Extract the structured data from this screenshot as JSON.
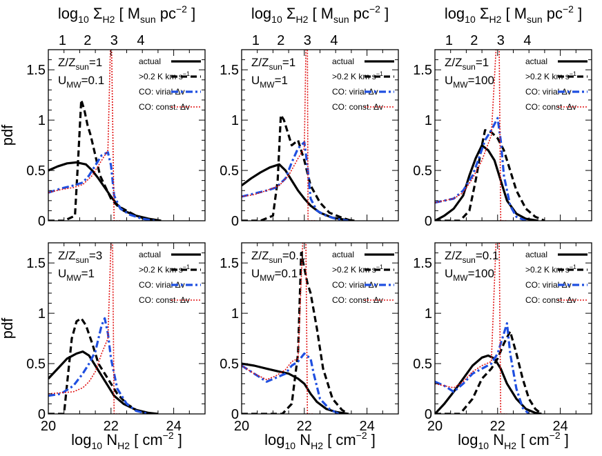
{
  "top_axis_label": {
    "pre": "log",
    "sub1": "10",
    "mid": " Σ",
    "sub2": "H2",
    "post": " [ M",
    "sub3": "sun",
    "post2": " pc",
    "sup": "−2",
    "end": " ]"
  },
  "bottom_axis_label": {
    "pre": "log",
    "sub1": "10",
    "mid": " N",
    "sub2": "H2",
    "post": " [ cm",
    "sup": "−2",
    "end": " ]"
  },
  "ylabel": "pdf",
  "legend": {
    "actual": "actual",
    "threshold": {
      "pre": ">0.2 K km s",
      "sup": "−1"
    },
    "virial": "CO: virial Δv",
    "const": "CO: const. Δv"
  },
  "colors": {
    "actual": "#000000",
    "threshold": "#000000",
    "virial": "#1f4fe0",
    "const": "#e01010"
  },
  "chart_data": [
    {
      "type": "line",
      "panel": 1,
      "annotation": {
        "z_label": "Z/Z",
        "z_sub": "sun",
        "z_val": "=1",
        "u_label": "U",
        "u_sub": "MW",
        "u_val": "=0.1"
      },
      "xlabel": "log10 N_H2 [cm^-2]",
      "ylabel": "pdf",
      "xlim": [
        20,
        25
      ],
      "ylim": [
        0,
        1.7
      ],
      "x_ticks": [
        "20",
        "22",
        "24"
      ],
      "y_ticks": [
        "0",
        "0.5",
        "1",
        "1.5"
      ],
      "top_ticks": [
        "1",
        "2",
        "3",
        "4"
      ],
      "series": [
        {
          "name": "actual",
          "x": [
            20.0,
            20.3,
            20.6,
            20.9,
            21.2,
            21.4,
            21.6,
            21.8,
            22.0,
            22.2,
            22.4,
            22.8,
            23.2,
            23.6
          ],
          "y": [
            0.5,
            0.54,
            0.57,
            0.58,
            0.56,
            0.5,
            0.42,
            0.33,
            0.24,
            0.16,
            0.1,
            0.05,
            0.02,
            0.0
          ]
        },
        {
          "name": ">0.2 K km s^-1",
          "x": [
            20.0,
            20.5,
            20.85,
            20.95,
            21.05,
            21.15,
            21.25,
            21.35,
            21.5,
            21.65,
            21.8,
            22.0,
            22.2,
            22.5,
            22.8,
            23.1,
            23.5
          ],
          "y": [
            0.0,
            0.0,
            0.05,
            0.6,
            1.2,
            1.1,
            0.95,
            0.85,
            0.65,
            0.45,
            0.35,
            0.22,
            0.15,
            0.1,
            0.05,
            0.02,
            0.0
          ]
        },
        {
          "name": "CO: virial Δv",
          "x": [
            20.0,
            20.4,
            20.8,
            21.1,
            21.3,
            21.5,
            21.7,
            21.9,
            22.0,
            22.1,
            22.3,
            22.6,
            23.0,
            23.4
          ],
          "y": [
            0.28,
            0.32,
            0.35,
            0.38,
            0.45,
            0.55,
            0.65,
            0.68,
            0.55,
            0.25,
            0.12,
            0.06,
            0.02,
            0.0
          ]
        },
        {
          "name": "CO: const. Δv",
          "x": [
            20.0,
            20.4,
            20.8,
            21.1,
            21.4,
            21.7,
            21.9,
            21.98,
            22.0,
            22.02,
            22.1,
            22.3
          ],
          "y": [
            0.28,
            0.31,
            0.33,
            0.36,
            0.45,
            0.6,
            0.7,
            1.7,
            1.7,
            1.7,
            0.0,
            0.0
          ]
        }
      ]
    },
    {
      "type": "line",
      "panel": 2,
      "annotation": {
        "z_label": "Z/Z",
        "z_sub": "sun",
        "z_val": "=1",
        "u_label": "U",
        "u_sub": "MW",
        "u_val": "=1"
      },
      "xlim": [
        20,
        25
      ],
      "ylim": [
        0,
        1.7
      ],
      "x_ticks": [
        "20",
        "22",
        "24"
      ],
      "y_ticks": [
        "0",
        "0.5",
        "1",
        "1.5"
      ],
      "top_ticks": [
        "1",
        "2",
        "3",
        "4"
      ],
      "series": [
        {
          "name": "actual",
          "x": [
            20.0,
            20.3,
            20.6,
            20.9,
            21.2,
            21.4,
            21.6,
            21.8,
            22.0,
            22.2,
            22.5,
            22.9,
            23.3,
            23.6
          ],
          "y": [
            0.35,
            0.42,
            0.48,
            0.53,
            0.56,
            0.5,
            0.4,
            0.3,
            0.22,
            0.15,
            0.08,
            0.03,
            0.01,
            0.0
          ]
        },
        {
          "name": ">0.2 K km s^-1",
          "x": [
            20.0,
            20.6,
            21.0,
            21.15,
            21.25,
            21.35,
            21.45,
            21.6,
            21.8,
            22.0,
            22.2,
            22.5,
            22.8,
            23.2,
            23.5
          ],
          "y": [
            0.0,
            0.0,
            0.05,
            0.4,
            1.05,
            1.0,
            0.9,
            0.75,
            0.8,
            0.6,
            0.35,
            0.18,
            0.08,
            0.03,
            0.0
          ]
        },
        {
          "name": "CO: virial Δv",
          "x": [
            20.0,
            20.4,
            20.8,
            21.1,
            21.4,
            21.6,
            21.8,
            22.0,
            22.1,
            22.2,
            22.4,
            22.7,
            23.0,
            23.4
          ],
          "y": [
            0.24,
            0.27,
            0.3,
            0.33,
            0.42,
            0.58,
            0.72,
            0.78,
            0.55,
            0.22,
            0.1,
            0.05,
            0.02,
            0.0
          ]
        },
        {
          "name": "CO: const. Δv",
          "x": [
            20.0,
            20.4,
            20.8,
            21.2,
            21.5,
            21.8,
            22.0,
            22.05,
            22.1,
            22.12,
            22.2,
            22.4
          ],
          "y": [
            0.24,
            0.26,
            0.3,
            0.35,
            0.45,
            0.62,
            0.72,
            1.7,
            1.7,
            0.0,
            0.0,
            0.0
          ]
        }
      ]
    },
    {
      "type": "line",
      "panel": 3,
      "annotation": {
        "z_label": "Z/Z",
        "z_sub": "sun",
        "z_val": "=1",
        "u_label": "U",
        "u_sub": "MW",
        "u_val": "=100"
      },
      "xlim": [
        20,
        25
      ],
      "ylim": [
        0,
        1.7
      ],
      "x_ticks": [
        "20",
        "22",
        "24"
      ],
      "y_ticks": [
        "0",
        "0.5",
        "1",
        "1.5"
      ],
      "top_ticks": [
        "1",
        "2",
        "3",
        "4"
      ],
      "series": [
        {
          "name": "actual",
          "x": [
            20.0,
            20.3,
            20.6,
            20.9,
            21.1,
            21.3,
            21.5,
            21.7,
            21.9,
            22.1,
            22.3,
            22.6,
            22.9,
            23.3
          ],
          "y": [
            0.0,
            0.05,
            0.12,
            0.25,
            0.45,
            0.62,
            0.75,
            0.7,
            0.6,
            0.4,
            0.2,
            0.07,
            0.02,
            0.0
          ]
        },
        {
          "name": ">0.2 K km s^-1",
          "x": [
            20.0,
            20.8,
            21.1,
            21.3,
            21.5,
            21.6,
            21.8,
            22.0,
            22.2,
            22.4,
            22.6,
            22.9,
            23.2,
            23.5
          ],
          "y": [
            0.0,
            0.0,
            0.1,
            0.4,
            0.75,
            0.9,
            0.88,
            0.82,
            0.7,
            0.5,
            0.3,
            0.12,
            0.04,
            0.0
          ]
        },
        {
          "name": "CO: virial Δv",
          "x": [
            20.0,
            20.3,
            20.6,
            20.9,
            21.2,
            21.4,
            21.6,
            21.8,
            22.0,
            22.1,
            22.2,
            22.4,
            22.6,
            22.9
          ],
          "y": [
            0.18,
            0.2,
            0.22,
            0.3,
            0.45,
            0.62,
            0.8,
            0.9,
            1.02,
            0.8,
            0.45,
            0.15,
            0.04,
            0.0
          ]
        },
        {
          "name": "CO: const. Δv",
          "x": [
            20.0,
            20.3,
            20.6,
            20.9,
            21.2,
            21.5,
            21.8,
            21.95,
            22.0,
            22.05,
            22.1,
            22.3
          ],
          "y": [
            0.18,
            0.2,
            0.22,
            0.28,
            0.42,
            0.6,
            0.85,
            1.7,
            1.7,
            1.7,
            0.0,
            0.0
          ]
        }
      ]
    },
    {
      "type": "line",
      "panel": 4,
      "annotation": {
        "z_label": "Z/Z",
        "z_sub": "sun",
        "z_val": "=3",
        "u_label": "U",
        "u_sub": "MW",
        "u_val": "=1"
      },
      "xlim": [
        20,
        25
      ],
      "ylim": [
        0,
        1.7
      ],
      "x_ticks": [
        "20",
        "22",
        "24"
      ],
      "y_ticks": [
        "0",
        "0.5",
        "1",
        "1.5"
      ],
      "top_ticks": [],
      "series": [
        {
          "name": "actual",
          "x": [
            20.0,
            20.3,
            20.6,
            20.9,
            21.1,
            21.3,
            21.5,
            21.7,
            21.9,
            22.1,
            22.4,
            22.8,
            23.2,
            23.5
          ],
          "y": [
            0.35,
            0.45,
            0.55,
            0.6,
            0.62,
            0.58,
            0.48,
            0.38,
            0.28,
            0.18,
            0.1,
            0.04,
            0.01,
            0.0
          ]
        },
        {
          "name": ">0.2 K km s^-1",
          "x": [
            20.0,
            20.5,
            20.6,
            20.75,
            20.9,
            21.05,
            21.2,
            21.4,
            21.6,
            21.8,
            22.0,
            22.2,
            22.5,
            22.8,
            23.1
          ],
          "y": [
            0.0,
            0.0,
            0.3,
            0.75,
            0.92,
            0.95,
            0.88,
            0.7,
            0.5,
            0.4,
            0.3,
            0.2,
            0.1,
            0.04,
            0.0
          ]
        },
        {
          "name": "CO: virial Δv",
          "x": [
            20.0,
            20.4,
            20.8,
            21.1,
            21.3,
            21.5,
            21.7,
            21.8,
            21.9,
            22.0,
            22.2,
            22.5,
            22.8,
            23.2
          ],
          "y": [
            0.18,
            0.2,
            0.28,
            0.4,
            0.5,
            0.62,
            0.88,
            0.95,
            0.8,
            0.55,
            0.25,
            0.1,
            0.03,
            0.0
          ]
        },
        {
          "name": "CO: const. Δv",
          "x": [
            20.0,
            20.4,
            20.8,
            21.1,
            21.3,
            21.5,
            21.7,
            21.9,
            22.0,
            22.05,
            22.1,
            22.3
          ],
          "y": [
            0.2,
            0.21,
            0.22,
            0.26,
            0.32,
            0.42,
            0.6,
            0.75,
            1.7,
            1.7,
            0.0,
            0.0
          ]
        }
      ]
    },
    {
      "type": "line",
      "panel": 5,
      "annotation": {
        "z_label": "Z/Z",
        "z_sub": "sun",
        "z_val": "=0.1",
        "u_label": "U",
        "u_sub": "MW",
        "u_val": "=0.1"
      },
      "xlim": [
        20,
        25
      ],
      "ylim": [
        0,
        1.7
      ],
      "x_ticks": [
        "20",
        "22",
        "24"
      ],
      "y_ticks": [
        "0",
        "0.5",
        "1",
        "1.5"
      ],
      "top_ticks": [],
      "series": [
        {
          "name": "actual",
          "x": [
            20.0,
            20.4,
            20.8,
            21.2,
            21.5,
            21.8,
            22.0,
            22.2,
            22.4,
            22.7,
            23.0,
            23.4
          ],
          "y": [
            0.5,
            0.48,
            0.45,
            0.42,
            0.4,
            0.35,
            0.3,
            0.2,
            0.12,
            0.05,
            0.02,
            0.0
          ]
        },
        {
          "name": ">0.2 K km s^-1",
          "x": [
            20.0,
            21.3,
            21.6,
            21.8,
            21.9,
            22.0,
            22.1,
            22.2,
            22.4,
            22.6,
            22.9,
            23.2,
            23.4
          ],
          "y": [
            0.0,
            0.0,
            0.1,
            0.6,
            1.6,
            1.45,
            1.3,
            1.2,
            0.85,
            0.45,
            0.15,
            0.04,
            0.0
          ]
        },
        {
          "name": "CO: virial Δv",
          "x": [
            20.0,
            20.4,
            20.8,
            21.1,
            21.4,
            21.6,
            21.8,
            22.0,
            22.2,
            22.3,
            22.5,
            22.8,
            23.1
          ],
          "y": [
            0.48,
            0.4,
            0.32,
            0.36,
            0.4,
            0.48,
            0.52,
            0.6,
            0.55,
            0.4,
            0.15,
            0.05,
            0.0
          ]
        },
        {
          "name": "CO: const. Δv",
          "x": [
            20.0,
            20.4,
            20.8,
            21.1,
            21.4,
            21.6,
            21.8,
            21.95,
            22.0,
            22.05,
            22.1,
            22.3
          ],
          "y": [
            0.48,
            0.4,
            0.34,
            0.38,
            0.44,
            0.52,
            0.55,
            1.7,
            1.7,
            1.7,
            0.0,
            0.0
          ]
        }
      ]
    },
    {
      "type": "line",
      "panel": 6,
      "annotation": {
        "z_label": "Z/Z",
        "z_sub": "sun",
        "z_val": "=0.1",
        "u_label": "U",
        "u_sub": "MW",
        "u_val": "=100"
      },
      "xlim": [
        20,
        25
      ],
      "ylim": [
        0,
        1.7
      ],
      "x_ticks": [
        "20",
        "22",
        "24"
      ],
      "y_ticks": [
        "0",
        "0.5",
        "1",
        "1.5"
      ],
      "top_ticks": [],
      "series": [
        {
          "name": "actual",
          "x": [
            20.0,
            20.3,
            20.6,
            20.9,
            21.2,
            21.5,
            21.7,
            21.9,
            22.1,
            22.3,
            22.6,
            22.9,
            23.2,
            23.4
          ],
          "y": [
            0.0,
            0.1,
            0.22,
            0.35,
            0.48,
            0.56,
            0.58,
            0.55,
            0.45,
            0.3,
            0.15,
            0.05,
            0.01,
            0.0
          ]
        },
        {
          "name": ">0.2 K km s^-1",
          "x": [
            20.0,
            20.8,
            21.2,
            21.5,
            21.8,
            22.0,
            22.2,
            22.4,
            22.6,
            22.8,
            23.0,
            23.2,
            23.4
          ],
          "y": [
            0.0,
            0.0,
            0.15,
            0.35,
            0.45,
            0.55,
            0.7,
            0.82,
            0.6,
            0.35,
            0.15,
            0.05,
            0.0
          ]
        },
        {
          "name": "CO: virial Δv",
          "x": [
            20.0,
            20.3,
            20.6,
            20.9,
            21.2,
            21.5,
            21.8,
            22.0,
            22.2,
            22.3,
            22.4,
            22.6,
            22.8,
            23.0
          ],
          "y": [
            0.32,
            0.28,
            0.22,
            0.3,
            0.4,
            0.45,
            0.5,
            0.6,
            0.8,
            0.9,
            0.6,
            0.25,
            0.06,
            0.0
          ]
        },
        {
          "name": "CO: const. Δv",
          "x": [
            20.0,
            20.3,
            20.6,
            20.9,
            21.2,
            21.5,
            21.8,
            21.95,
            22.0,
            22.05,
            22.1,
            22.3
          ],
          "y": [
            0.3,
            0.28,
            0.26,
            0.32,
            0.42,
            0.48,
            0.52,
            1.7,
            1.7,
            1.7,
            0.0,
            0.0
          ]
        }
      ]
    }
  ]
}
